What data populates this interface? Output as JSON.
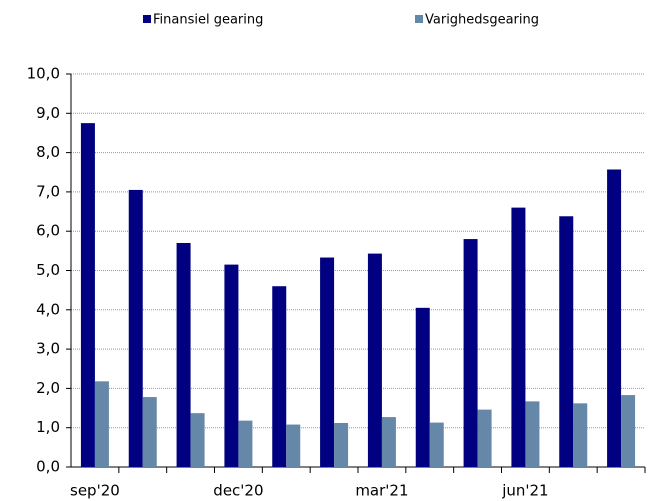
{
  "chart_data": {
    "type": "bar",
    "categories": [
      "sep'20",
      null,
      null,
      "dec'20",
      null,
      null,
      "mar'21",
      null,
      null,
      "jun'21",
      null,
      null
    ],
    "series": [
      {
        "name": "Finansiel gearing",
        "color": "#000080",
        "values": [
          8.75,
          7.05,
          5.7,
          5.15,
          4.6,
          5.33,
          5.43,
          4.05,
          5.8,
          6.6,
          6.38,
          7.57
        ]
      },
      {
        "name": "Varighedsgearing",
        "color": "#6688a8",
        "values": [
          2.18,
          1.78,
          1.37,
          1.18,
          1.08,
          1.12,
          1.27,
          1.13,
          1.46,
          1.67,
          1.62,
          1.83
        ]
      }
    ],
    "ylim": [
      0,
      10
    ],
    "yticks": [
      {
        "value": 0,
        "label": "0,0"
      },
      {
        "value": 1,
        "label": "1,0"
      },
      {
        "value": 2,
        "label": "2,0"
      },
      {
        "value": 3,
        "label": "3,0"
      },
      {
        "value": 4,
        "label": "4,0"
      },
      {
        "value": 5,
        "label": "5,0"
      },
      {
        "value": 6,
        "label": "6,0"
      },
      {
        "value": 7,
        "label": "7,0"
      },
      {
        "value": 8,
        "label": "8,0"
      },
      {
        "value": 9,
        "label": "9,0"
      },
      {
        "value": 10,
        "label": "10,0"
      }
    ],
    "grid": true,
    "legend": "top"
  }
}
